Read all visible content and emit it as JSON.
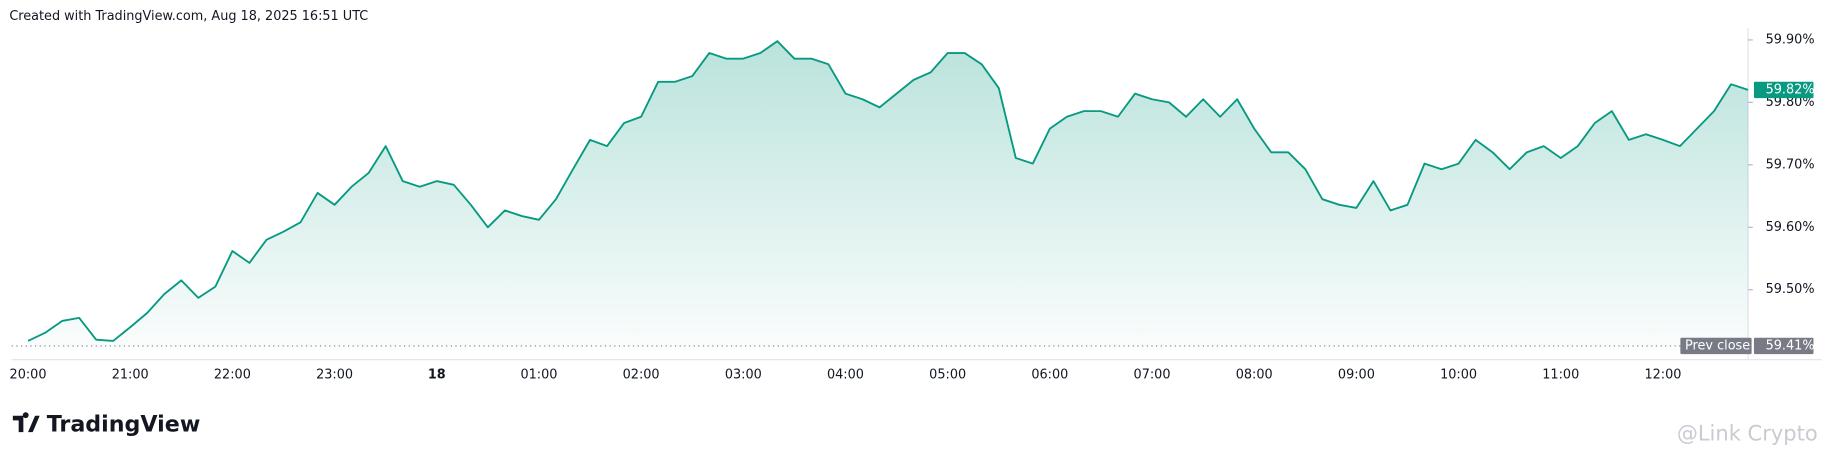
{
  "header": {
    "text": "Created with TradingView.com, Aug 18, 2025 16:51 UTC"
  },
  "chart_data": {
    "type": "area",
    "color": "#089981",
    "categories": [
      "20:00",
      null,
      null,
      null,
      null,
      null,
      "21:00",
      null,
      null,
      null,
      null,
      null,
      "22:00",
      null,
      null,
      null,
      null,
      null,
      "23:00",
      null,
      null,
      null,
      null,
      null,
      "18",
      null,
      null,
      null,
      null,
      null,
      "01:00",
      null,
      null,
      null,
      null,
      null,
      "02:00",
      null,
      null,
      null,
      null,
      null,
      "03:00",
      null,
      null,
      null,
      null,
      null,
      "04:00",
      null,
      null,
      null,
      null,
      null,
      "05:00",
      null,
      null,
      null,
      null,
      null,
      "06:00",
      null,
      null,
      null,
      null,
      null,
      "07:00",
      null,
      null,
      null,
      null,
      null,
      "08:00",
      null,
      null,
      null,
      null,
      null,
      "09:00",
      null,
      null,
      null,
      null,
      null,
      "10:00",
      null,
      null,
      null,
      null,
      null,
      "11:00",
      null,
      null,
      null,
      null,
      null,
      "12:00",
      null,
      null,
      null,
      null,
      null
    ],
    "values": [
      59.418,
      59.431,
      59.45,
      59.455,
      59.42,
      59.418,
      59.44,
      59.463,
      59.493,
      59.515,
      59.487,
      59.505,
      59.562,
      59.543,
      59.58,
      59.593,
      59.608,
      59.655,
      59.636,
      59.665,
      59.687,
      59.73,
      59.674,
      59.665,
      59.674,
      59.668,
      59.636,
      59.6,
      59.627,
      59.618,
      59.612,
      59.645,
      59.693,
      59.74,
      59.73,
      59.767,
      59.777,
      59.833,
      59.833,
      59.842,
      59.879,
      59.87,
      59.87,
      59.879,
      59.898,
      59.87,
      59.87,
      59.861,
      59.814,
      59.805,
      59.792,
      59.814,
      59.836,
      59.848,
      59.879,
      59.879,
      59.861,
      59.823,
      59.711,
      59.702,
      59.758,
      59.777,
      59.786,
      59.786,
      59.777,
      59.814,
      59.805,
      59.8,
      59.777,
      59.805,
      59.777,
      59.805,
      59.758,
      59.72,
      59.72,
      59.693,
      59.645,
      59.636,
      59.631,
      59.674,
      59.627,
      59.636,
      59.702,
      59.693,
      59.702,
      59.74,
      59.72,
      59.693,
      59.72,
      59.73,
      59.711,
      59.73,
      59.767,
      59.786,
      59.74,
      59.749,
      59.74,
      59.73,
      59.758,
      59.786,
      59.829,
      59.82
    ],
    "ylim": [
      59.388,
      59.919
    ],
    "yticks": [
      {
        "value": 59.5,
        "label": "59.50%"
      },
      {
        "value": 59.6,
        "label": "59.60%"
      },
      {
        "value": 59.7,
        "label": "59.70%"
      },
      {
        "value": 59.8,
        "label": "59.80%"
      },
      {
        "value": 59.9,
        "label": "59.90%"
      }
    ],
    "prev_close": {
      "name": "Prev close",
      "value": 59.41,
      "label": "59.41%"
    },
    "current_price": {
      "value": 59.82,
      "label": "59.82%"
    }
  },
  "footer": {
    "logo": "TradingView",
    "watermark": "@Link Crypto"
  }
}
